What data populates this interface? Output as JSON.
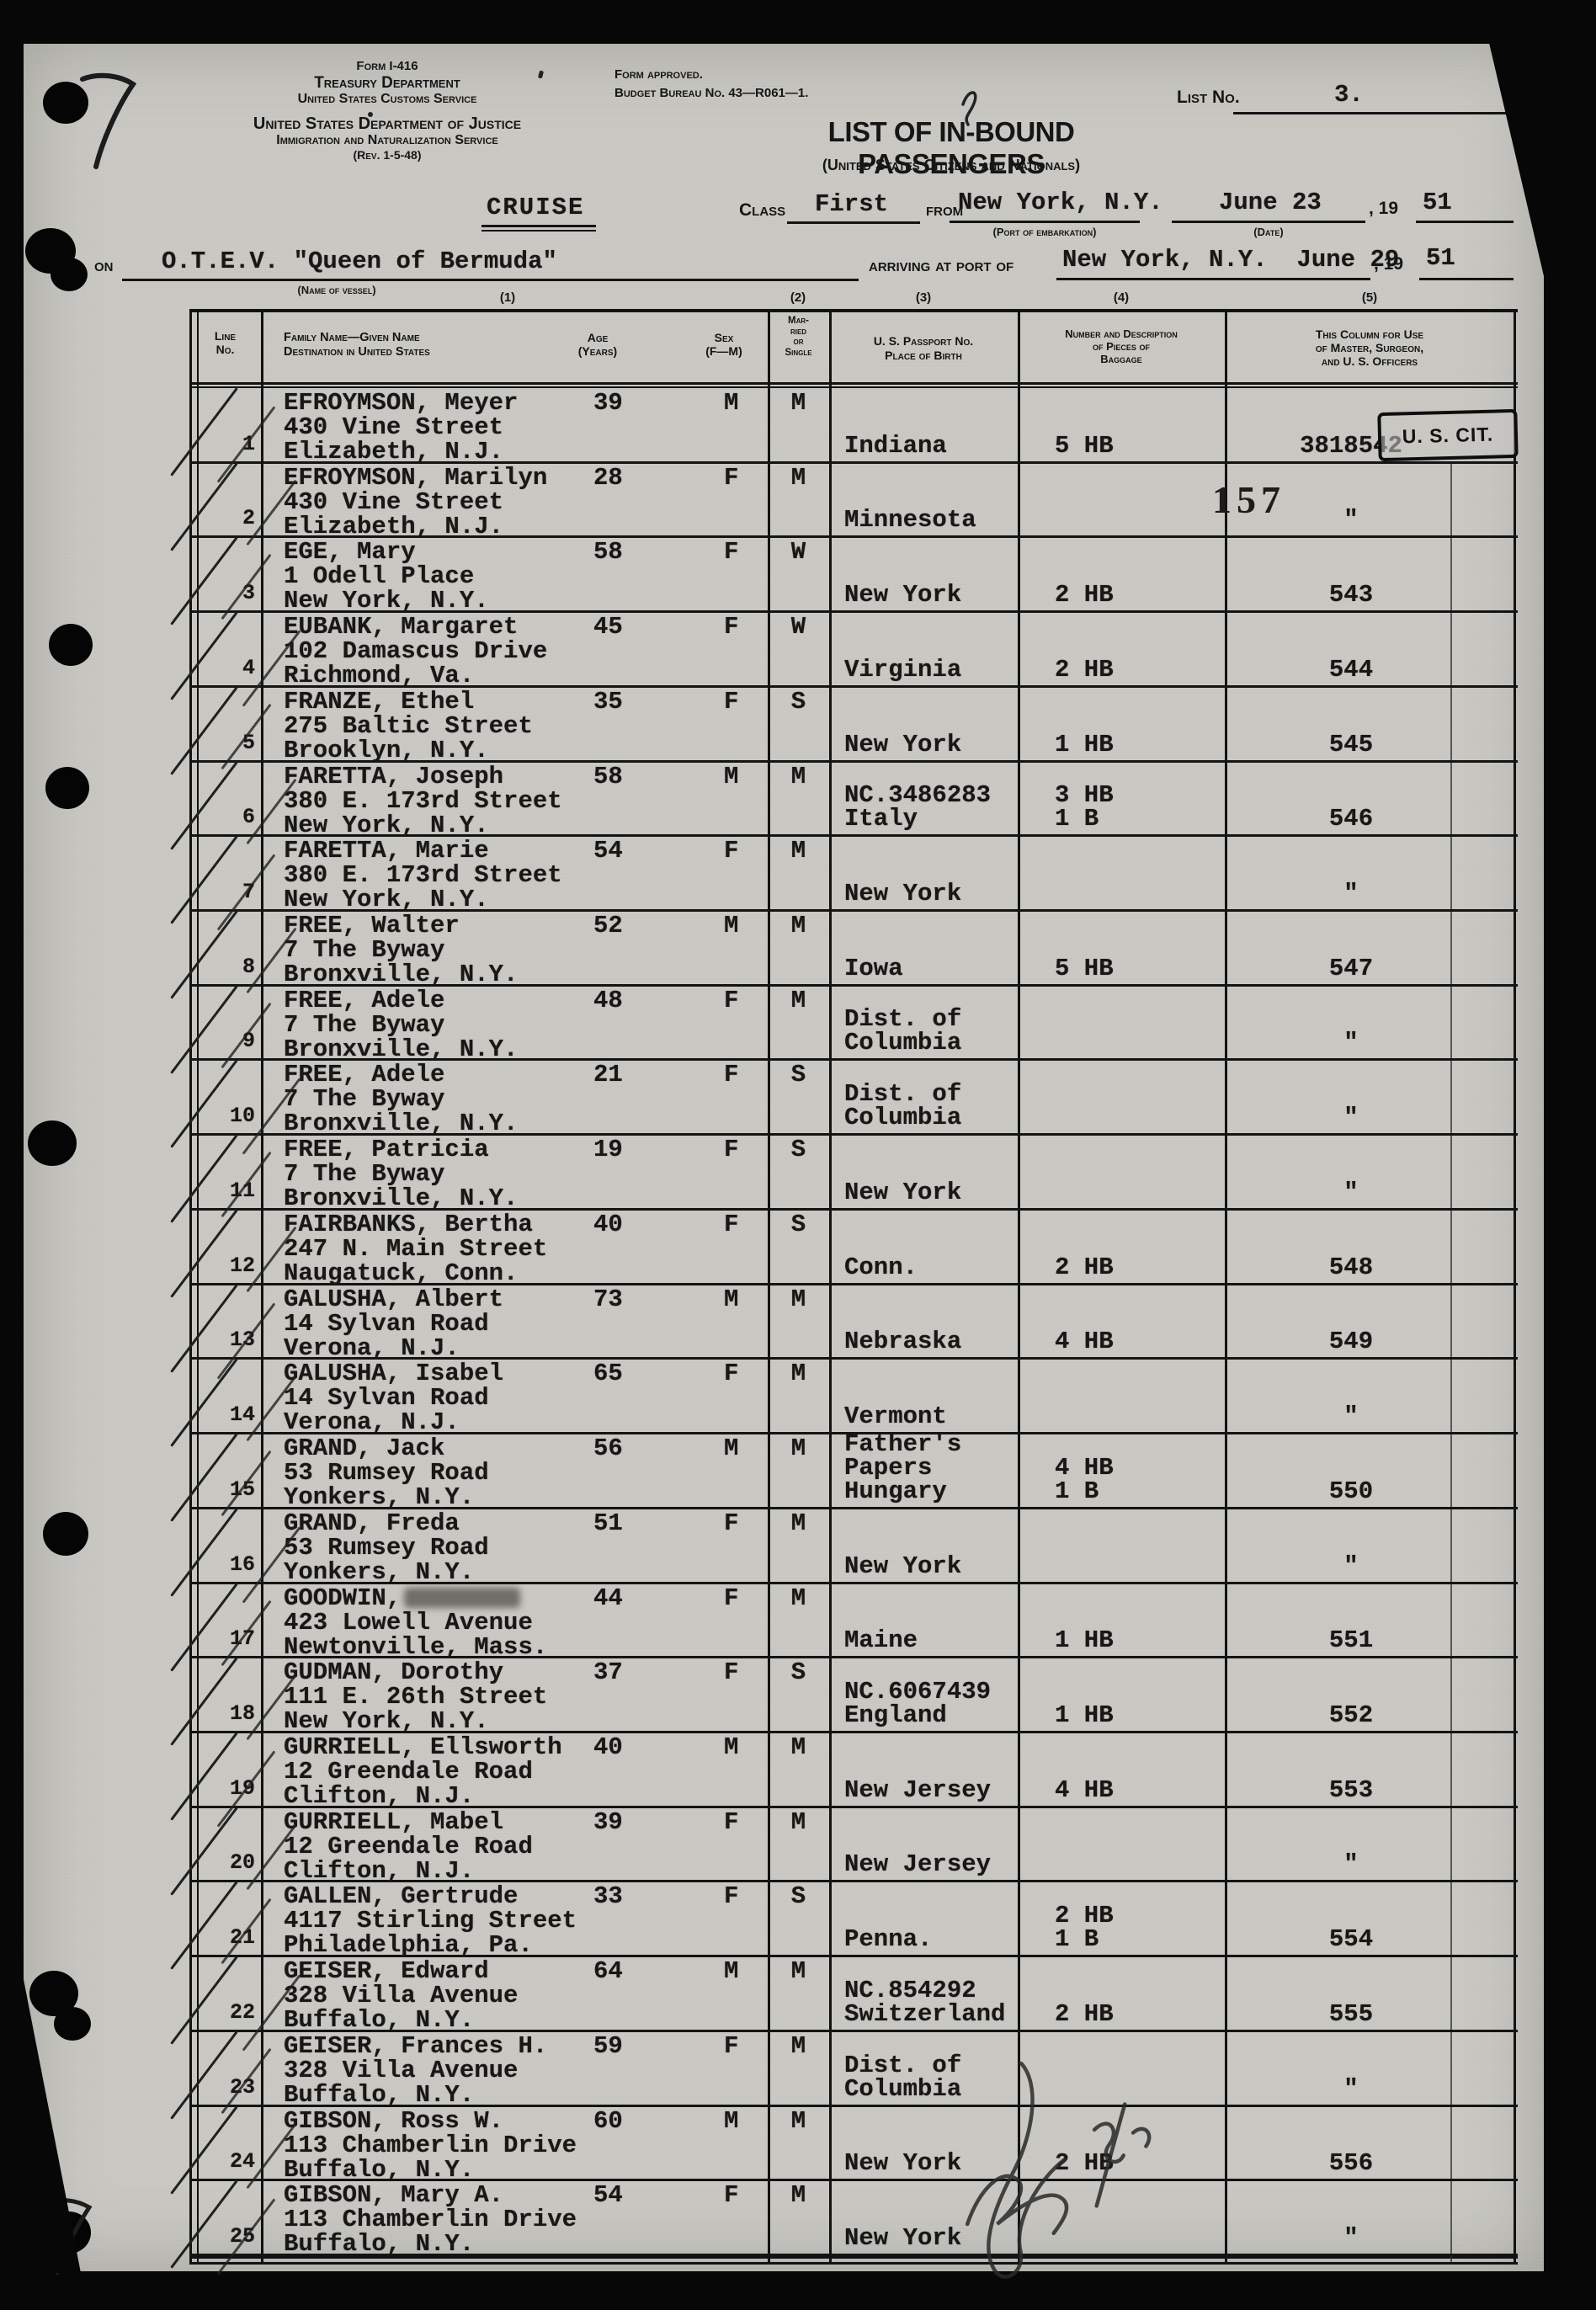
{
  "page": {
    "form_number": "Form I-416",
    "agency_1": "Treasury Department",
    "agency_2": "United States Customs Service",
    "agency_3": "United States Department of Justice",
    "agency_4": "Immigration and Naturalization Service",
    "revision": "(Rev. 1-5-48)",
    "approved_1": "Form approved.",
    "approved_2": "Budget Bureau No. 43—R061—1.",
    "list_no_label": "List No.",
    "list_no_value": "3.",
    "title": "LIST OF IN-BOUND PASSENGERS",
    "subtitle": "(United States Citizens and Nationals)",
    "cruise_label": "CRUISE",
    "class_label": "Class",
    "class_value": "First",
    "from_label": "from",
    "embark_port": "New York, N.Y.",
    "embark_port_caption": "(Port of embarkation)",
    "embark_date": "June 23",
    "date_caption": "(Date)",
    "year_prefix": ", 19",
    "embark_year": "51",
    "on_label": "on",
    "vessel_name": "O.T.E.V. \"Queen of Bermuda\"",
    "vessel_caption": "(Name of vessel)",
    "arrive_label": "arriving at port of",
    "arrive_value": "New York, N.Y.  June 29",
    "arrive_year": "51"
  },
  "table": {
    "column_numbers": [
      "(1)",
      "(2)",
      "(3)",
      "(4)",
      "(5)"
    ],
    "headers": {
      "line_no": [
        "Line",
        "No."
      ],
      "name_l1": "Family Name—Given Name",
      "name_l2": "Destination in United States",
      "age": [
        "Age",
        "(Years)"
      ],
      "sex": [
        "Sex",
        "(F—M)"
      ],
      "married": [
        "Mar-",
        "ried",
        "or",
        "Single"
      ],
      "passport_l1": "U. S. Passport No.",
      "passport_l2": "Place of Birth",
      "baggage": [
        "Number and Description",
        "of Pieces of",
        "Baggage"
      ],
      "officers": [
        "This Column for Use",
        "of Master, Surgeon,",
        "and U. S. Officers"
      ]
    },
    "stamps": {
      "us_cit": "U. S. CIT.",
      "officer_stamp": "157"
    },
    "rows": [
      {
        "line": "1",
        "name": "EFROYMSON, Meyer",
        "address": "430 Vine Street",
        "city": "Elizabeth, N.J.",
        "age": "39",
        "sex": "M",
        "status": "M",
        "birth": [
          "Indiana"
        ],
        "baggage": [
          "5 HB"
        ],
        "officer": "3818542"
      },
      {
        "line": "2",
        "name": "EFROYMSON, Marilyn",
        "address": "430 Vine Street",
        "city": "Elizabeth, N.J.",
        "age": "28",
        "sex": "F",
        "status": "M",
        "birth": [
          "Minnesota"
        ],
        "baggage": [],
        "officer": "″"
      },
      {
        "line": "3",
        "name": "EGE, Mary",
        "address": "1 Odell Place",
        "city": "New York, N.Y.",
        "age": "58",
        "sex": "F",
        "status": "W",
        "birth": [
          "New York"
        ],
        "baggage": [
          "2 HB"
        ],
        "officer": "543"
      },
      {
        "line": "4",
        "name": "EUBANK, Margaret",
        "address": "102 Damascus Drive",
        "city": "Richmond, Va.",
        "age": "45",
        "sex": "F",
        "status": "W",
        "birth": [
          "Virginia"
        ],
        "baggage": [
          "2 HB"
        ],
        "officer": "544"
      },
      {
        "line": "5",
        "name": "FRANZE, Ethel",
        "address": "275 Baltic Street",
        "city": "Brooklyn, N.Y.",
        "age": "35",
        "sex": "F",
        "status": "S",
        "birth": [
          "New York"
        ],
        "baggage": [
          "1 HB"
        ],
        "officer": "545"
      },
      {
        "line": "6",
        "name": "FARETTA, Joseph",
        "address": "380 E. 173rd Street",
        "city": "New York, N.Y.",
        "age": "58",
        "sex": "M",
        "status": "M",
        "birth": [
          "NC.3486283",
          "Italy"
        ],
        "baggage": [
          "3 HB",
          "1 B"
        ],
        "officer": "546"
      },
      {
        "line": "7",
        "name": "FARETTA, Marie",
        "address": "380 E. 173rd Street",
        "city": "New York, N.Y.",
        "age": "54",
        "sex": "F",
        "status": "M",
        "birth": [
          "New York"
        ],
        "baggage": [],
        "officer": "″"
      },
      {
        "line": "8",
        "name": "FREE, Walter",
        "address": "7 The Byway",
        "city": "Bronxville, N.Y.",
        "age": "52",
        "sex": "M",
        "status": "M",
        "birth": [
          "Iowa"
        ],
        "baggage": [
          "5 HB"
        ],
        "officer": "547"
      },
      {
        "line": "9",
        "name": "FREE, Adele",
        "address": "7 The Byway",
        "city": "Bronxville, N.Y.",
        "age": "48",
        "sex": "F",
        "status": "M",
        "birth": [
          "Dist. of",
          "Columbia"
        ],
        "baggage": [],
        "officer": "″"
      },
      {
        "line": "10",
        "name": "FREE, Adele",
        "address": "7 The Byway",
        "city": "Bronxville, N.Y.",
        "age": "21",
        "sex": "F",
        "status": "S",
        "birth": [
          "Dist. of",
          "Columbia"
        ],
        "baggage": [],
        "officer": "″"
      },
      {
        "line": "11",
        "name": "FREE, Patricia",
        "address": "7 The Byway",
        "city": "Bronxville, N.Y.",
        "age": "19",
        "sex": "F",
        "status": "S",
        "birth": [
          "New York"
        ],
        "baggage": [],
        "officer": "″"
      },
      {
        "line": "12",
        "name": "FAIRBANKS, Bertha",
        "address": "247 N. Main Street",
        "city": "Naugatuck, Conn.",
        "age": "40",
        "sex": "F",
        "status": "S",
        "birth": [
          "Conn."
        ],
        "baggage": [
          "2 HB"
        ],
        "officer": "548"
      },
      {
        "line": "13",
        "name": "GALUSHA, Albert",
        "address": "14 Sylvan Road",
        "city": "Verona, N.J.",
        "age": "73",
        "sex": "M",
        "status": "M",
        "birth": [
          "Nebraska"
        ],
        "baggage": [
          "4 HB"
        ],
        "officer": "549"
      },
      {
        "line": "14",
        "name": "GALUSHA, Isabel",
        "address": "14 Sylvan Road",
        "city": "Verona, N.J.",
        "age": "65",
        "sex": "F",
        "status": "M",
        "birth": [
          "Vermont"
        ],
        "baggage": [],
        "officer": "″"
      },
      {
        "line": "15",
        "name": "GRAND, Jack",
        "address": "53 Rumsey Road",
        "city": "Yonkers, N.Y.",
        "age": "56",
        "sex": "M",
        "status": "M",
        "birth": [
          "Father's",
          "Papers",
          "Hungary"
        ],
        "baggage": [
          "4 HB",
          "1 B"
        ],
        "officer": "550"
      },
      {
        "line": "16",
        "name": "GRAND, Freda",
        "address": "53 Rumsey Road",
        "city": "Yonkers, N.Y.",
        "age": "51",
        "sex": "F",
        "status": "M",
        "birth": [
          "New York"
        ],
        "baggage": [],
        "officer": "″"
      },
      {
        "line": "17",
        "name": "GOODWIN,",
        "smudge": true,
        "address": "423 Lowell Avenue",
        "city": "Newtonville, Mass.",
        "age": "44",
        "sex": "F",
        "status": "M",
        "birth": [
          "Maine"
        ],
        "baggage": [
          "1 HB"
        ],
        "officer": "551"
      },
      {
        "line": "18",
        "name": "GUDMAN, Dorothy",
        "address": "111 E. 26th Street",
        "city": "New York, N.Y.",
        "age": "37",
        "sex": "F",
        "status": "S",
        "birth": [
          "NC.6067439",
          "England"
        ],
        "baggage": [
          "1 HB"
        ],
        "officer": "552"
      },
      {
        "line": "19",
        "name": "GURRIELL, Ellsworth",
        "address": "12 Greendale Road",
        "city": "Clifton, N.J.",
        "age": "40",
        "sex": "M",
        "status": "M",
        "birth": [
          "New Jersey"
        ],
        "baggage": [
          "4 HB"
        ],
        "officer": "553"
      },
      {
        "line": "20",
        "name": "GURRIELL, Mabel",
        "address": "12 Greendale Road",
        "city": "Clifton, N.J.",
        "age": "39",
        "sex": "F",
        "status": "M",
        "birth": [
          "New Jersey"
        ],
        "baggage": [],
        "officer": "″"
      },
      {
        "line": "21",
        "name": "GALLEN, Gertrude",
        "address": "4117 Stirling Street",
        "city": "Philadelphia, Pa.",
        "age": "33",
        "sex": "F",
        "status": "S",
        "birth": [
          "Penna."
        ],
        "baggage": [
          "2 HB",
          "1 B"
        ],
        "officer": "554"
      },
      {
        "line": "22",
        "name": "GEISER, Edward",
        "address": "328 Villa Avenue",
        "city": "Buffalo, N.Y.",
        "age": "64",
        "sex": "M",
        "status": "M",
        "birth": [
          "NC.854292",
          "Switzerland"
        ],
        "baggage": [
          "2 HB"
        ],
        "officer": "555"
      },
      {
        "line": "23",
        "name": "GEISER, Frances H.",
        "address": "328 Villa Avenue",
        "city": "Buffalo, N.Y.",
        "age": "59",
        "sex": "F",
        "status": "M",
        "birth": [
          "Dist. of",
          "Columbia"
        ],
        "baggage": [],
        "officer": "″"
      },
      {
        "line": "24",
        "name": "GIBSON, Ross W.",
        "address": "113 Chamberlin Drive",
        "city": "Buffalo, N.Y.",
        "age": "60",
        "sex": "M",
        "status": "M",
        "birth": [
          "New York"
        ],
        "baggage": [
          "2 HB"
        ],
        "officer": "556"
      },
      {
        "line": "25",
        "name": "GIBSON, Mary A.",
        "address": "113 Chamberlin Drive",
        "city": "Buffalo, N.Y.",
        "age": "54",
        "sex": "F",
        "status": "M",
        "birth": [
          "New York"
        ],
        "baggage": [],
        "officer": "″"
      }
    ]
  }
}
